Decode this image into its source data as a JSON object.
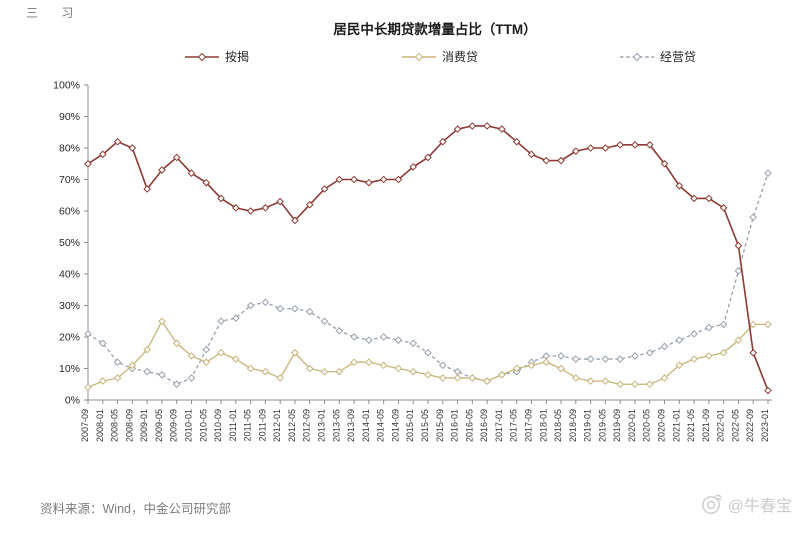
{
  "page": {
    "top_left_fragment": "三 习",
    "source_note": "资料来源：Wind，中金公司研究部",
    "watermark": {
      "icon": "weibo-camera-logo",
      "text": "@牛春宝"
    }
  },
  "chart_data": {
    "type": "line",
    "title": "居民中长期贷款增量占比（TTM）",
    "xlabel": "",
    "ylabel": "",
    "ylim": [
      0,
      100
    ],
    "grid": false,
    "legend_position": "top",
    "y_tick_labels": [
      "0%",
      "10%",
      "20%",
      "30%",
      "40%",
      "50%",
      "60%",
      "70%",
      "80%",
      "90%",
      "100%"
    ],
    "x_labels": [
      "2007-09",
      "2008-01",
      "2008-05",
      "2008-09",
      "2009-01",
      "2009-05",
      "2009-09",
      "2010-01",
      "2010-05",
      "2010-09",
      "2011-01",
      "2011-05",
      "2011-09",
      "2012-01",
      "2012-05",
      "2012-09",
      "2013-01",
      "2013-05",
      "2013-09",
      "2014-01",
      "2014-05",
      "2014-09",
      "2015-01",
      "2015-05",
      "2015-09",
      "2016-01",
      "2016-05",
      "2016-09",
      "2017-01",
      "2017-05",
      "2017-09",
      "2018-01",
      "2018-05",
      "2018-09",
      "2019-01",
      "2019-05",
      "2019-09",
      "2020-01",
      "2020-05",
      "2020-09",
      "2021-01",
      "2021-05",
      "2021-09",
      "2022-01",
      "2022-05",
      "2022-09",
      "2023-01"
    ],
    "series": [
      {
        "id": "business-loan",
        "name": "经营贷",
        "color": "#96a0ac",
        "line_style": "dashed",
        "marker": "diamond",
        "values": [
          21,
          18,
          12,
          10,
          9,
          8,
          5,
          7,
          16,
          25,
          26,
          30,
          31,
          29,
          29,
          28,
          25,
          22,
          20,
          19,
          20,
          19,
          18,
          15,
          11,
          9,
          7,
          6,
          8,
          9,
          12,
          14,
          14,
          13,
          13,
          13,
          13,
          14,
          15,
          17,
          19,
          21,
          23,
          24,
          41,
          58,
          72
        ]
      },
      {
        "id": "consumer-loan",
        "name": "消费贷",
        "color": "#c8b378",
        "line_style": "solid",
        "marker": "diamond",
        "values": [
          4,
          6,
          7,
          11,
          16,
          25,
          18,
          14,
          12,
          15,
          13,
          10,
          9,
          7,
          15,
          10,
          9,
          9,
          12,
          12,
          11,
          10,
          9,
          8,
          7,
          7,
          7,
          6,
          8,
          10,
          11,
          12,
          10,
          7,
          6,
          6,
          5,
          5,
          5,
          7,
          11,
          13,
          14,
          15,
          19,
          24,
          24
        ]
      },
      {
        "id": "mortgage",
        "name": "按揭",
        "color": "#8c3a32",
        "line_style": "solid",
        "marker": "diamond",
        "values": [
          75,
          78,
          82,
          80,
          67,
          73,
          77,
          72,
          69,
          64,
          61,
          60,
          61,
          63,
          57,
          62,
          67,
          70,
          70,
          69,
          70,
          70,
          74,
          77,
          82,
          86,
          87,
          87,
          86,
          82,
          78,
          76,
          76,
          79,
          80,
          80,
          81,
          81,
          81,
          75,
          68,
          64,
          64,
          61,
          49,
          15,
          3
        ]
      }
    ],
    "legend_order": [
      "mortgage",
      "consumer-loan",
      "business-loan"
    ]
  }
}
